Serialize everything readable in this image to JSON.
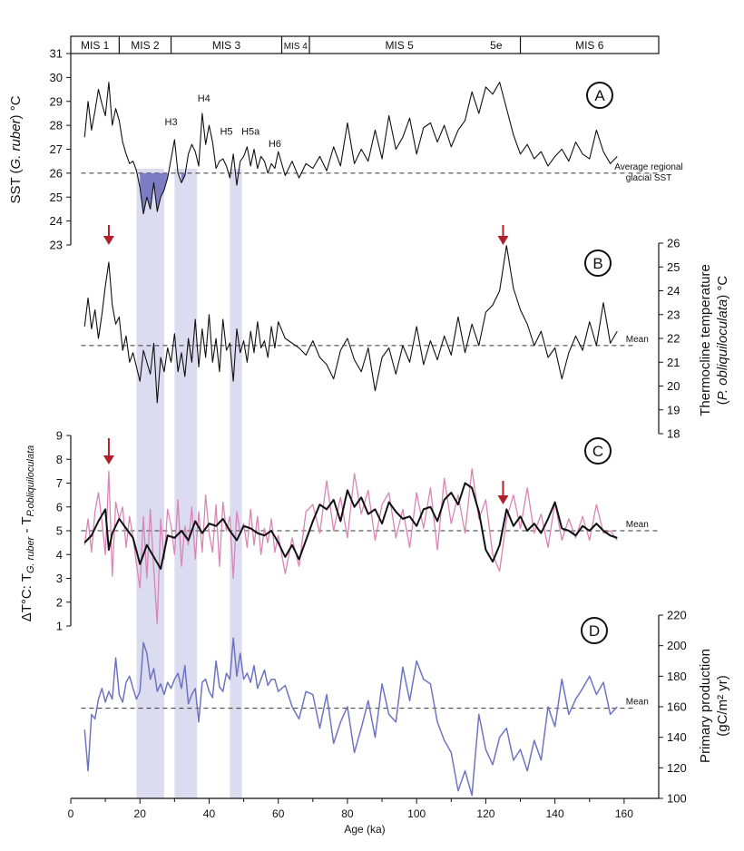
{
  "xaxis": {
    "label": "Age (ka)",
    "range": [
      0,
      170
    ],
    "ticks": [
      0,
      20,
      40,
      60,
      80,
      100,
      120,
      140,
      160
    ]
  },
  "mis_bar": {
    "stages": [
      {
        "label": "MIS 1",
        "start": 0,
        "end": 14
      },
      {
        "label": "MIS 2",
        "start": 14,
        "end": 29
      },
      {
        "label": "MIS 3",
        "start": 29,
        "end": 61
      },
      {
        "label": "MIS 4",
        "start": 61,
        "end": 69
      },
      {
        "label": "MIS 5",
        "start": 69,
        "end": 130
      },
      {
        "label": "MIS 6",
        "start": 130,
        "end": 170
      }
    ],
    "substage": {
      "label": "5e",
      "at": 123
    }
  },
  "colors": {
    "ink": "#111111",
    "shade": "#dcdcf0",
    "sst_fill": "#6b6bbd",
    "pink": "#d985b5",
    "blue": "#6f74c2",
    "arrow": "#b0202a"
  },
  "shaded_bands": [
    {
      "start": 19,
      "end": 27
    },
    {
      "start": 30,
      "end": 36.5
    },
    {
      "start": 46,
      "end": 49.5
    }
  ],
  "chart_data": [
    {
      "panel": "A",
      "type": "line",
      "ylabel_parts": [
        "SST (",
        "G. ruber",
        ") °C"
      ],
      "ylim": [
        23,
        31
      ],
      "yticks": [
        23,
        24,
        25,
        26,
        27,
        28,
        29,
        30,
        31
      ],
      "axis_side": "left",
      "reference_line": {
        "value": 26,
        "label_lines": [
          "Average regional",
          "glacial SST"
        ]
      },
      "event_labels": [
        {
          "text": "H3",
          "x": 29,
          "y": 28.0
        },
        {
          "text": "H4",
          "x": 38.5,
          "y": 29.0
        },
        {
          "text": "H5",
          "x": 45,
          "y": 27.6
        },
        {
          "text": "H5a",
          "x": 52,
          "y": 27.6
        },
        {
          "text": "H6",
          "x": 59,
          "y": 27.1
        }
      ],
      "x": [
        4,
        5,
        6,
        7,
        8,
        9,
        10,
        11,
        12,
        13,
        14,
        15,
        16,
        17,
        18,
        19,
        20,
        21,
        22,
        23,
        24,
        25,
        26,
        27,
        28,
        29,
        30,
        31,
        32,
        33,
        34,
        35,
        36,
        37,
        38,
        39,
        40,
        41,
        42,
        43,
        44,
        45,
        46,
        47,
        48,
        49,
        50,
        51,
        52,
        53,
        54,
        55,
        56,
        57,
        58,
        59,
        60,
        62,
        64,
        66,
        68,
        70,
        72,
        74,
        76,
        78,
        80,
        82,
        84,
        86,
        88,
        90,
        92,
        94,
        96,
        98,
        100,
        102,
        104,
        106,
        108,
        110,
        112,
        114,
        116,
        118,
        120,
        122,
        124,
        126,
        128,
        130,
        132,
        134,
        136,
        138,
        140,
        142,
        144,
        146,
        148,
        150,
        152,
        154,
        156,
        158
      ],
      "values": [
        27.5,
        29.0,
        27.8,
        28.6,
        29.5,
        28.9,
        28.4,
        29.8,
        28.0,
        28.7,
        28.2,
        27.3,
        26.8,
        26.4,
        26.5,
        26.1,
        25.4,
        24.3,
        25.0,
        24.5,
        25.6,
        24.4,
        25.0,
        25.3,
        25.8,
        26.6,
        27.4,
        26.0,
        25.6,
        25.9,
        26.8,
        27.2,
        26.9,
        26.3,
        28.5,
        27.2,
        28.0,
        27.3,
        26.2,
        26.5,
        26.6,
        26.3,
        25.8,
        26.8,
        25.5,
        26.5,
        26.7,
        27.1,
        26.3,
        27.0,
        26.2,
        26.7,
        26.5,
        26.0,
        26.4,
        26.2,
        26.9,
        25.9,
        26.5,
        25.8,
        26.4,
        26.2,
        26.7,
        26.1,
        27.1,
        26.3,
        28.1,
        26.4,
        27.0,
        26.5,
        27.8,
        26.6,
        28.4,
        27.0,
        27.5,
        28.3,
        26.8,
        27.9,
        28.1,
        27.3,
        28.0,
        27.1,
        27.8,
        28.2,
        29.4,
        28.5,
        29.6,
        29.3,
        29.8,
        28.7,
        27.6,
        26.8,
        27.2,
        26.6,
        26.9,
        26.3,
        26.7,
        27.0,
        26.5,
        27.3,
        26.8,
        26.6,
        27.8,
        26.9,
        26.4,
        26.7
      ]
    },
    {
      "panel": "B",
      "type": "line",
      "ylabel_parts": [
        "Thermocline temperature",
        "(",
        "P. obliquiloculata",
        ") °C"
      ],
      "ylim": [
        18,
        26
      ],
      "yticks": [
        18,
        19,
        20,
        21,
        22,
        23,
        24,
        25,
        26
      ],
      "axis_side": "right",
      "reference_line": {
        "value": 21.7,
        "label": "Mean"
      },
      "arrows_x": [
        11,
        125
      ],
      "x": [
        4,
        5,
        6,
        7,
        8,
        9,
        10,
        11,
        12,
        13,
        14,
        15,
        16,
        17,
        18,
        19,
        20,
        21,
        22,
        23,
        24,
        25,
        26,
        27,
        28,
        29,
        30,
        31,
        32,
        33,
        34,
        35,
        36,
        37,
        38,
        39,
        40,
        41,
        42,
        43,
        44,
        45,
        46,
        47,
        48,
        49,
        50,
        51,
        52,
        53,
        54,
        55,
        56,
        57,
        58,
        59,
        60,
        62,
        64,
        66,
        68,
        70,
        72,
        74,
        76,
        78,
        80,
        82,
        84,
        86,
        88,
        90,
        92,
        94,
        96,
        98,
        100,
        102,
        104,
        106,
        108,
        110,
        112,
        114,
        116,
        118,
        120,
        122,
        124,
        126,
        128,
        130,
        132,
        134,
        136,
        138,
        140,
        142,
        144,
        146,
        148,
        150,
        152,
        154,
        156,
        158
      ],
      "values": [
        22.5,
        23.7,
        22.4,
        23.2,
        22.0,
        23.0,
        24.2,
        25.2,
        23.4,
        22.6,
        22.9,
        21.5,
        22.1,
        21.0,
        21.4,
        20.8,
        20.2,
        21.5,
        21.0,
        20.5,
        21.8,
        19.3,
        21.2,
        20.6,
        21.6,
        21.0,
        22.2,
        20.6,
        21.4,
        20.4,
        22.0,
        21.0,
        22.8,
        20.8,
        22.4,
        21.2,
        23.0,
        21.0,
        22.0,
        20.6,
        22.8,
        21.5,
        21.8,
        20.2,
        22.4,
        21.4,
        21.9,
        21.0,
        22.3,
        21.4,
        22.7,
        21.6,
        21.9,
        21.2,
        22.5,
        21.6,
        22.7,
        22.0,
        21.8,
        21.6,
        21.3,
        21.9,
        21.2,
        20.9,
        20.3,
        21.5,
        22.0,
        21.1,
        20.6,
        21.6,
        19.8,
        21.2,
        21.6,
        20.5,
        21.7,
        21.0,
        22.5,
        20.9,
        21.9,
        21.1,
        22.1,
        21.3,
        22.9,
        21.4,
        22.6,
        21.7,
        23.1,
        23.4,
        24.0,
        25.9,
        24.1,
        23.2,
        22.6,
        21.7,
        22.3,
        21.2,
        21.6,
        20.3,
        21.4,
        22.1,
        21.5,
        22.7,
        21.7,
        23.5,
        21.8,
        22.3
      ]
    },
    {
      "panel": "C",
      "type": "line",
      "ylabel_parts": [
        "ΔT°C: T",
        "G. ruber",
        " - T",
        "P.obliquiloculata"
      ],
      "ylim": [
        1,
        9
      ],
      "yticks": [
        1,
        2,
        3,
        4,
        5,
        6,
        7,
        8,
        9
      ],
      "axis_side": "left",
      "reference_line": {
        "value": 5.0,
        "label": "Mean"
      },
      "arrows_x": [
        11,
        125
      ],
      "series": [
        {
          "name": "raw",
          "x": [
            4,
            5,
            6,
            7,
            8,
            9,
            10,
            11,
            12,
            13,
            14,
            15,
            16,
            17,
            18,
            19,
            20,
            21,
            22,
            23,
            24,
            25,
            26,
            27,
            28,
            29,
            30,
            31,
            32,
            33,
            34,
            35,
            36,
            37,
            38,
            39,
            40,
            41,
            42,
            43,
            44,
            45,
            46,
            47,
            48,
            49,
            50,
            51,
            52,
            53,
            54,
            55,
            56,
            57,
            58,
            59,
            60,
            62,
            64,
            66,
            68,
            70,
            72,
            74,
            76,
            78,
            80,
            82,
            84,
            86,
            88,
            90,
            92,
            94,
            96,
            98,
            100,
            102,
            104,
            106,
            108,
            110,
            112,
            114,
            116,
            118,
            120,
            122,
            124,
            126,
            128,
            130,
            132,
            134,
            136,
            138,
            140,
            142,
            144,
            146,
            148,
            150,
            152,
            154,
            156,
            158
          ],
          "values": [
            4.4,
            5.5,
            4.1,
            5.8,
            6.6,
            5.4,
            4.0,
            7.5,
            3.1,
            6.2,
            5.5,
            6.0,
            4.3,
            5.6,
            4.7,
            3.6,
            2.6,
            5.6,
            3.0,
            5.9,
            3.4,
            1.1,
            5.5,
            3.8,
            5.9,
            5.2,
            4.0,
            6.3,
            3.5,
            5.2,
            4.4,
            6.0,
            3.8,
            5.8,
            4.1,
            6.5,
            4.9,
            4.1,
            6.1,
            3.5,
            6.2,
            5.0,
            5.6,
            3.0,
            5.8,
            4.9,
            5.3,
            4.3,
            5.9,
            4.4,
            5.6,
            4.0,
            5.1,
            4.5,
            5.5,
            4.1,
            4.8,
            3.2,
            4.7,
            3.5,
            5.8,
            6.1,
            4.9,
            7.1,
            5.0,
            6.4,
            4.7,
            7.4,
            5.7,
            6.7,
            4.6,
            6.1,
            6.6,
            4.7,
            5.9,
            4.3,
            6.6,
            5.1,
            6.8,
            4.2,
            7.2,
            5.3,
            6.5,
            4.9,
            7.6,
            5.5,
            6.3,
            4.0,
            3.3,
            5.5,
            6.5,
            5.1,
            6.8,
            4.9,
            5.7,
            4.3,
            6.2,
            4.6,
            5.5,
            4.7,
            5.6,
            4.6,
            6.1,
            4.9,
            5.0,
            4.6
          ]
        },
        {
          "name": "smoothed",
          "x": [
            4,
            6,
            8,
            10,
            11,
            12,
            14,
            16,
            18,
            20,
            22,
            24,
            26,
            28,
            30,
            32,
            34,
            36,
            38,
            40,
            42,
            44,
            46,
            48,
            50,
            52,
            54,
            56,
            58,
            60,
            62,
            64,
            66,
            68,
            70,
            72,
            74,
            76,
            78,
            80,
            82,
            84,
            86,
            88,
            90,
            92,
            94,
            96,
            98,
            100,
            102,
            104,
            106,
            108,
            110,
            112,
            114,
            116,
            118,
            120,
            122,
            124,
            126,
            128,
            130,
            132,
            134,
            136,
            138,
            140,
            142,
            144,
            146,
            148,
            150,
            152,
            154,
            156,
            158
          ],
          "values": [
            4.5,
            4.8,
            5.4,
            5.9,
            4.2,
            4.9,
            5.5,
            5.1,
            4.7,
            3.6,
            4.4,
            3.9,
            3.4,
            4.8,
            4.7,
            5.0,
            4.6,
            5.4,
            4.9,
            5.3,
            5.2,
            5.5,
            5.0,
            4.6,
            5.2,
            5.1,
            4.9,
            4.8,
            5.0,
            4.5,
            3.9,
            4.4,
            3.8,
            4.6,
            5.4,
            6.1,
            5.9,
            6.3,
            5.4,
            6.7,
            6.0,
            6.4,
            5.7,
            5.9,
            5.3,
            6.2,
            5.8,
            5.5,
            5.6,
            5.2,
            5.9,
            6.0,
            5.4,
            6.3,
            6.6,
            6.1,
            7.0,
            6.8,
            5.8,
            4.2,
            3.7,
            4.4,
            5.9,
            5.2,
            5.6,
            5.0,
            5.3,
            4.9,
            5.5,
            6.2,
            5.1,
            5.0,
            4.8,
            5.2,
            5.0,
            5.3,
            5.0,
            4.8,
            4.7
          ]
        }
      ]
    },
    {
      "panel": "D",
      "type": "line",
      "ylabel_parts": [
        "Primary production",
        "(gC/m² yr)"
      ],
      "ylim": [
        100,
        220
      ],
      "yticks": [
        100,
        120,
        140,
        160,
        180,
        200,
        220
      ],
      "axis_side": "right",
      "reference_line": {
        "value": 159,
        "label": "Mean"
      },
      "x": [
        4,
        5,
        6,
        7,
        8,
        9,
        10,
        11,
        12,
        13,
        14,
        15,
        16,
        17,
        18,
        19,
        20,
        21,
        22,
        23,
        24,
        25,
        26,
        27,
        28,
        29,
        30,
        31,
        32,
        33,
        34,
        35,
        36,
        37,
        38,
        39,
        40,
        41,
        42,
        43,
        44,
        45,
        46,
        47,
        48,
        49,
        50,
        51,
        52,
        53,
        54,
        55,
        56,
        57,
        58,
        59,
        60,
        62,
        64,
        66,
        68,
        70,
        72,
        74,
        76,
        78,
        80,
        82,
        84,
        86,
        88,
        90,
        92,
        94,
        96,
        98,
        100,
        102,
        104,
        106,
        108,
        110,
        112,
        114,
        116,
        118,
        120,
        122,
        124,
        126,
        128,
        130,
        132,
        134,
        136,
        138,
        140,
        142,
        144,
        146,
        148,
        150,
        152,
        154,
        156,
        158
      ],
      "values": [
        145,
        118,
        155,
        152,
        165,
        172,
        163,
        170,
        165,
        192,
        168,
        163,
        176,
        180,
        172,
        165,
        170,
        202,
        195,
        178,
        185,
        170,
        175,
        168,
        176,
        172,
        178,
        182,
        172,
        187,
        162,
        168,
        172,
        150,
        176,
        178,
        170,
        166,
        190,
        173,
        170,
        182,
        178,
        205,
        180,
        195,
        178,
        182,
        176,
        187,
        172,
        178,
        184,
        174,
        178,
        178,
        170,
        174,
        160,
        152,
        170,
        168,
        146,
        168,
        136,
        150,
        160,
        130,
        146,
        164,
        140,
        175,
        155,
        150,
        186,
        164,
        190,
        178,
        175,
        150,
        138,
        130,
        105,
        118,
        102,
        155,
        132,
        122,
        140,
        146,
        125,
        132,
        118,
        138,
        125,
        160,
        147,
        178,
        155,
        165,
        172,
        180,
        168,
        176,
        155,
        160
      ]
    }
  ]
}
